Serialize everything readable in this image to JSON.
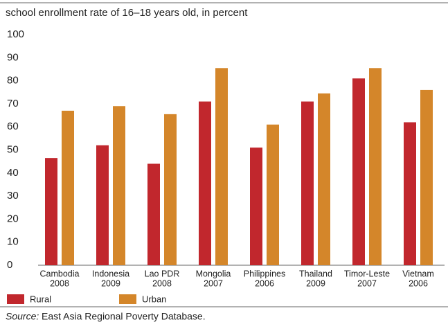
{
  "chart_data": {
    "type": "bar",
    "title": "school enrollment rate of 16–18 years old, in percent",
    "categories": [
      [
        "Cambodia",
        "2008"
      ],
      [
        "Indonesia",
        "2009"
      ],
      [
        "Lao PDR",
        "2008"
      ],
      [
        "Mongolia",
        "2007"
      ],
      [
        "Philippines",
        "2006"
      ],
      [
        "Thailand",
        "2009"
      ],
      [
        "Timor-Leste",
        "2007"
      ],
      [
        "Vietnam",
        "2006"
      ]
    ],
    "series": [
      {
        "name": "Rural",
        "color": "#c1272d",
        "values": [
          46.5,
          52,
          44,
          71,
          51,
          71,
          81,
          62
        ]
      },
      {
        "name": "Urban",
        "color": "#d4862a",
        "values": [
          67,
          69,
          65.5,
          85.5,
          61,
          74.5,
          85.5,
          76
        ]
      }
    ],
    "ylim": [
      0,
      100
    ],
    "yticks": [
      0,
      10,
      20,
      30,
      40,
      50,
      60,
      70,
      80,
      90,
      100
    ],
    "grid": false,
    "legend": "bottom-left",
    "source_label": "Source:",
    "source": "East Asia Regional Poverty Database."
  }
}
